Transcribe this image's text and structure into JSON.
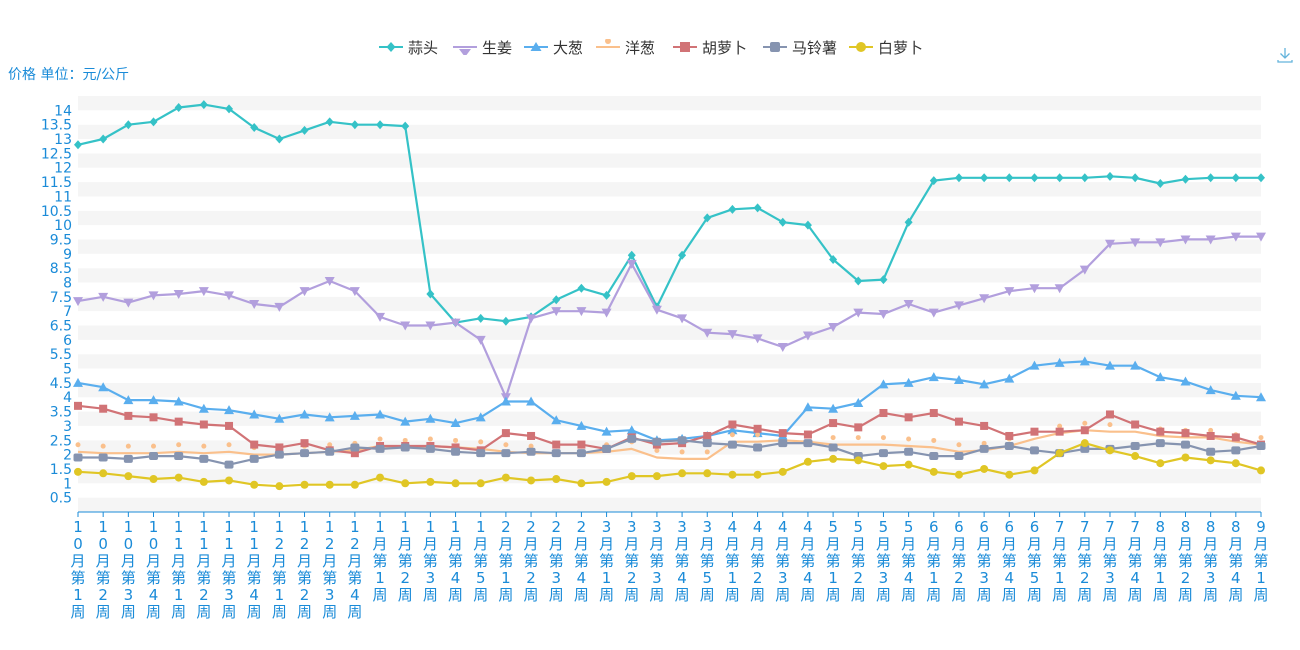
{
  "chart_data": {
    "type": "line",
    "ylabel": "价格 单位：元/公斤",
    "ylim": [
      0,
      14.5
    ],
    "yticks": [
      "0.5",
      "1",
      "1.5",
      "2",
      "2.5",
      "3",
      "3.5",
      "4",
      "4.5",
      "5",
      "5.5",
      "6",
      "6.5",
      "7",
      "7.5",
      "8",
      "8.5",
      "9",
      "9.5",
      "10",
      "10.5",
      "11",
      "11.5",
      "12",
      "12.5",
      "13",
      "13.5",
      "14"
    ],
    "grid": "horizontal-bands",
    "legend_position": "top-center",
    "categories": [
      "10月第1周",
      "10月第2周",
      "10月第3周",
      "10月第4周",
      "11月第1周",
      "11月第2周",
      "11月第3周",
      "11月第4周",
      "12月第1周",
      "12月第2周",
      "12月第3周",
      "12月第4周",
      "1月第1周",
      "1月第2周",
      "1月第3周",
      "1月第4周",
      "1月第5周",
      "2月第1周",
      "2月第2周",
      "2月第3周",
      "2月第4周",
      "3月第1周",
      "3月第2周",
      "3月第3周",
      "3月第4周",
      "3月第5周",
      "4月第1周",
      "4月第2周",
      "4月第3周",
      "4月第4周",
      "5月第1周",
      "5月第2周",
      "5月第3周",
      "5月第4周",
      "6月第1周",
      "6月第2周",
      "6月第3周",
      "6月第4周",
      "6月第5周",
      "7月第1周",
      "7月第2周",
      "7月第3周",
      "7月第4周",
      "8月第1周",
      "8月第2周",
      "8月第3周",
      "8月第4周",
      "9月第1周"
    ],
    "series": [
      {
        "name": "蒜头",
        "color": "#35c2c7",
        "marker": "diamond",
        "values": [
          12.8,
          13.0,
          13.5,
          13.6,
          14.1,
          14.2,
          14.05,
          13.4,
          13.0,
          13.3,
          13.6,
          13.5,
          13.5,
          13.45,
          7.6,
          6.6,
          6.75,
          6.65,
          6.8,
          7.4,
          7.8,
          7.55,
          8.95,
          7.15,
          8.95,
          10.25,
          10.55,
          10.6,
          10.1,
          10.0,
          8.8,
          8.05,
          8.1,
          10.1,
          11.55,
          11.65,
          11.65,
          11.65,
          11.65,
          11.65,
          11.65,
          11.7,
          11.65,
          11.45,
          11.6,
          11.65,
          11.65,
          11.65
        ]
      },
      {
        "name": "生姜",
        "color": "#b29fdd",
        "marker": "triangle-down",
        "values": [
          7.35,
          7.5,
          7.3,
          7.55,
          7.6,
          7.7,
          7.55,
          7.25,
          7.15,
          7.7,
          8.05,
          7.7,
          6.8,
          6.5,
          6.5,
          6.6,
          6.0,
          4.0,
          6.75,
          7.0,
          7.0,
          6.95,
          8.65,
          7.05,
          6.75,
          6.25,
          6.2,
          6.05,
          5.75,
          6.15,
          6.45,
          6.95,
          6.9,
          7.25,
          6.95,
          7.2,
          7.45,
          7.7,
          7.8,
          7.8,
          8.45,
          9.35,
          9.4,
          9.4,
          9.5,
          9.5,
          9.6,
          9.6
        ]
      },
      {
        "name": "大葱",
        "color": "#5aaeee",
        "marker": "triangle-up",
        "values": [
          4.5,
          4.35,
          3.9,
          3.9,
          3.85,
          3.6,
          3.55,
          3.4,
          3.25,
          3.4,
          3.3,
          3.35,
          3.4,
          3.15,
          3.25,
          3.1,
          3.3,
          3.85,
          3.85,
          3.2,
          3.0,
          2.8,
          2.85,
          2.5,
          2.55,
          2.65,
          2.85,
          2.75,
          2.65,
          3.65,
          3.6,
          3.8,
          4.45,
          4.5,
          4.7,
          4.6,
          4.45,
          4.65,
          5.1,
          5.2,
          5.25,
          5.1,
          5.1,
          4.7,
          4.55,
          4.25,
          4.05,
          4.0
        ]
      },
      {
        "name": "洋葱",
        "color": "#fac08c",
        "marker": "pin",
        "values": [
          2.1,
          2.05,
          2.05,
          2.05,
          2.1,
          2.05,
          2.1,
          2.0,
          2.0,
          2.05,
          2.1,
          2.15,
          2.3,
          2.25,
          2.3,
          2.25,
          2.2,
          2.1,
          2.05,
          2.05,
          2.05,
          2.1,
          2.2,
          1.9,
          1.85,
          1.85,
          2.45,
          2.45,
          2.5,
          2.45,
          2.35,
          2.35,
          2.35,
          2.3,
          2.25,
          2.1,
          2.15,
          2.3,
          2.55,
          2.75,
          2.85,
          2.8,
          2.8,
          2.65,
          2.6,
          2.6,
          2.45,
          2.35
        ]
      },
      {
        "name": "胡萝卜",
        "color": "#d17376",
        "marker": "square",
        "values": [
          3.7,
          3.6,
          3.35,
          3.3,
          3.15,
          3.05,
          3.0,
          2.35,
          2.25,
          2.4,
          2.15,
          2.05,
          2.3,
          2.3,
          2.3,
          2.25,
          2.15,
          2.75,
          2.65,
          2.35,
          2.35,
          2.2,
          2.6,
          2.35,
          2.4,
          2.65,
          3.05,
          2.9,
          2.75,
          2.7,
          3.1,
          2.95,
          3.45,
          3.3,
          3.45,
          3.15,
          3.0,
          2.65,
          2.8,
          2.8,
          2.85,
          3.4,
          3.05,
          2.8,
          2.75,
          2.65,
          2.6,
          2.35
        ]
      },
      {
        "name": "马铃薯",
        "color": "#8694b0",
        "marker": "rounded-square",
        "values": [
          1.9,
          1.9,
          1.85,
          1.95,
          1.95,
          1.85,
          1.65,
          1.85,
          2.0,
          2.05,
          2.1,
          2.25,
          2.2,
          2.25,
          2.2,
          2.1,
          2.05,
          2.05,
          2.1,
          2.05,
          2.05,
          2.2,
          2.55,
          2.45,
          2.5,
          2.4,
          2.35,
          2.25,
          2.4,
          2.4,
          2.25,
          1.95,
          2.05,
          2.1,
          1.95,
          1.95,
          2.2,
          2.3,
          2.15,
          2.05,
          2.2,
          2.2,
          2.3,
          2.4,
          2.35,
          2.1,
          2.15,
          2.3
        ]
      },
      {
        "name": "白萝卜",
        "color": "#e0c625",
        "marker": "circle",
        "values": [
          1.4,
          1.35,
          1.25,
          1.15,
          1.2,
          1.05,
          1.1,
          0.95,
          0.9,
          0.95,
          0.95,
          0.95,
          1.2,
          1.0,
          1.05,
          1.0,
          1.0,
          1.2,
          1.1,
          1.15,
          1.0,
          1.05,
          1.25,
          1.25,
          1.35,
          1.35,
          1.3,
          1.3,
          1.4,
          1.75,
          1.85,
          1.8,
          1.6,
          1.65,
          1.4,
          1.3,
          1.5,
          1.3,
          1.45,
          2.05,
          2.4,
          2.15,
          1.95,
          1.7,
          1.9,
          1.8,
          1.7,
          1.45
        ]
      }
    ]
  },
  "toolbar": {
    "download_icon": "download-icon"
  }
}
